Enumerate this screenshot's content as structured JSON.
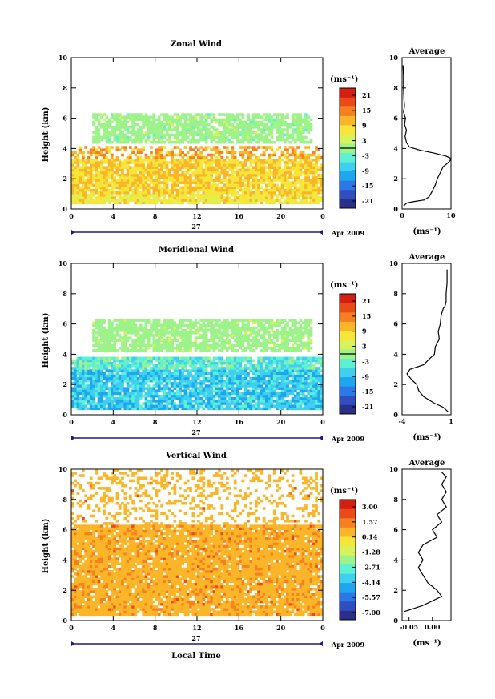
{
  "chart_data": [
    {
      "type": "heatmap",
      "title": "Zonal Wind",
      "ylabel": "Height (km)",
      "ylim": [
        0,
        10
      ],
      "xlim": [
        0,
        24
      ],
      "x_ticks": [
        "0",
        "4",
        "8",
        "12",
        "16",
        "20",
        "0"
      ],
      "y_ticks": [
        "0",
        "2",
        "4",
        "6",
        "8",
        "10"
      ],
      "date_day": "27",
      "date_label": "Apr 2009",
      "colorbar": {
        "unit": "(ms⁻¹)",
        "tick_labels": [
          "21",
          "15",
          "9",
          "3",
          "-3",
          "-9",
          "-15",
          "-21"
        ],
        "range": [
          -24,
          24
        ]
      },
      "profile": {
        "title": "Average",
        "xlabel": "(ms⁻¹)",
        "x_ticks": [
          "0",
          "10"
        ],
        "y_ticks": [
          "0",
          "2",
          "4",
          "6",
          "8",
          "10"
        ],
        "xlim": [
          0,
          10
        ],
        "points": [
          [
            0.3,
            0.2
          ],
          [
            1.0,
            0.4
          ],
          [
            2.5,
            0.5
          ],
          [
            4.5,
            0.6
          ],
          [
            5.5,
            0.8
          ],
          [
            6.2,
            1.2
          ],
          [
            6.8,
            1.6
          ],
          [
            7.2,
            2.0
          ],
          [
            7.8,
            2.4
          ],
          [
            8.4,
            2.8
          ],
          [
            9.2,
            3.0
          ],
          [
            9.8,
            3.2
          ],
          [
            10.0,
            3.35
          ],
          [
            9.0,
            3.5
          ],
          [
            6.5,
            3.7
          ],
          [
            3.5,
            3.9
          ],
          [
            1.5,
            4.1
          ],
          [
            0.9,
            4.4
          ],
          [
            0.6,
            4.8
          ],
          [
            0.9,
            5.2
          ],
          [
            0.5,
            5.6
          ],
          [
            0.7,
            6.0
          ],
          [
            0.3,
            6.4
          ],
          [
            0.5,
            6.8
          ],
          [
            0.4,
            7.2
          ],
          [
            0.3,
            8.0
          ],
          [
            0.3,
            8.8
          ],
          [
            0.2,
            9.5
          ]
        ]
      }
    },
    {
      "type": "heatmap",
      "title": "Meridional Wind",
      "ylabel": "Height (km)",
      "ylim": [
        0,
        10
      ],
      "xlim": [
        0,
        24
      ],
      "x_ticks": [
        "0",
        "4",
        "8",
        "12",
        "16",
        "20",
        "0"
      ],
      "y_ticks": [
        "0",
        "2",
        "4",
        "6",
        "8",
        "10"
      ],
      "date_day": "27",
      "date_label": "Apr 2009",
      "colorbar": {
        "unit": "(ms⁻¹)",
        "tick_labels": [
          "21",
          "15",
          "9",
          "3",
          "-3",
          "-9",
          "-15",
          "-21"
        ],
        "range": [
          -24,
          24
        ]
      },
      "profile": {
        "title": "Average",
        "xlabel": "(ms⁻¹)",
        "x_ticks": [
          "-4",
          "1"
        ],
        "y_ticks": [
          "0",
          "2",
          "4",
          "6",
          "8",
          "10"
        ],
        "xlim": [
          -4,
          1
        ],
        "points": [
          [
            0.7,
            0.2
          ],
          [
            0.2,
            0.5
          ],
          [
            -0.8,
            0.8
          ],
          [
            -1.8,
            1.2
          ],
          [
            -2.3,
            1.6
          ],
          [
            -2.5,
            2.0
          ],
          [
            -3.0,
            2.3
          ],
          [
            -3.5,
            2.7
          ],
          [
            -3.2,
            3.0
          ],
          [
            -1.8,
            3.3
          ],
          [
            -1.2,
            3.7
          ],
          [
            -0.7,
            4.0
          ],
          [
            -0.6,
            4.5
          ],
          [
            -0.2,
            5.0
          ],
          [
            -0.3,
            5.5
          ],
          [
            -0.1,
            6.0
          ],
          [
            0.0,
            6.6
          ],
          [
            0.2,
            7.0
          ],
          [
            0.4,
            7.2
          ],
          [
            0.5,
            7.5
          ],
          [
            0.5,
            8.0
          ],
          [
            0.6,
            8.7
          ],
          [
            0.6,
            9.2
          ],
          [
            0.6,
            9.6
          ]
        ]
      }
    },
    {
      "type": "heatmap",
      "title": "Vertical Wind",
      "xlabel": "Local Time",
      "ylabel": "Height (km)",
      "ylim": [
        0,
        10
      ],
      "xlim": [
        0,
        24
      ],
      "x_ticks": [
        "0",
        "4",
        "8",
        "12",
        "16",
        "20",
        "0"
      ],
      "y_ticks": [
        "0",
        "2",
        "4",
        "6",
        "8",
        "10"
      ],
      "date_day": "27",
      "date_label": "Apr 2009",
      "colorbar": {
        "unit": "(ms⁻¹)",
        "tick_labels": [
          "3.00",
          "1.57",
          "0.14",
          "-1.28",
          "-2.71",
          "-4.14",
          "-5.57",
          "-7.00"
        ],
        "range": [
          -7.7,
          3.7
        ]
      },
      "profile": {
        "title": "Average",
        "xlabel": "(ms⁻¹)",
        "x_ticks": [
          "-0.05",
          "0.00"
        ],
        "y_ticks": [
          "0",
          "2",
          "4",
          "6",
          "8",
          "10"
        ],
        "xlim": [
          -0.065,
          0.04
        ],
        "points": [
          [
            -0.06,
            0.6
          ],
          [
            -0.04,
            0.8
          ],
          [
            -0.02,
            1.0
          ],
          [
            0.0,
            1.3
          ],
          [
            0.02,
            1.6
          ],
          [
            0.01,
            2.0
          ],
          [
            -0.01,
            2.5
          ],
          [
            -0.02,
            3.0
          ],
          [
            -0.03,
            3.5
          ],
          [
            -0.02,
            4.0
          ],
          [
            -0.03,
            4.5
          ],
          [
            -0.02,
            5.0
          ],
          [
            0.01,
            5.5
          ],
          [
            0.0,
            6.0
          ],
          [
            0.02,
            6.5
          ],
          [
            0.01,
            7.0
          ],
          [
            0.03,
            7.5
          ],
          [
            0.02,
            8.0
          ],
          [
            0.03,
            8.5
          ],
          [
            0.02,
            9.0
          ],
          [
            0.03,
            9.5
          ],
          [
            0.02,
            9.8
          ]
        ]
      }
    }
  ]
}
